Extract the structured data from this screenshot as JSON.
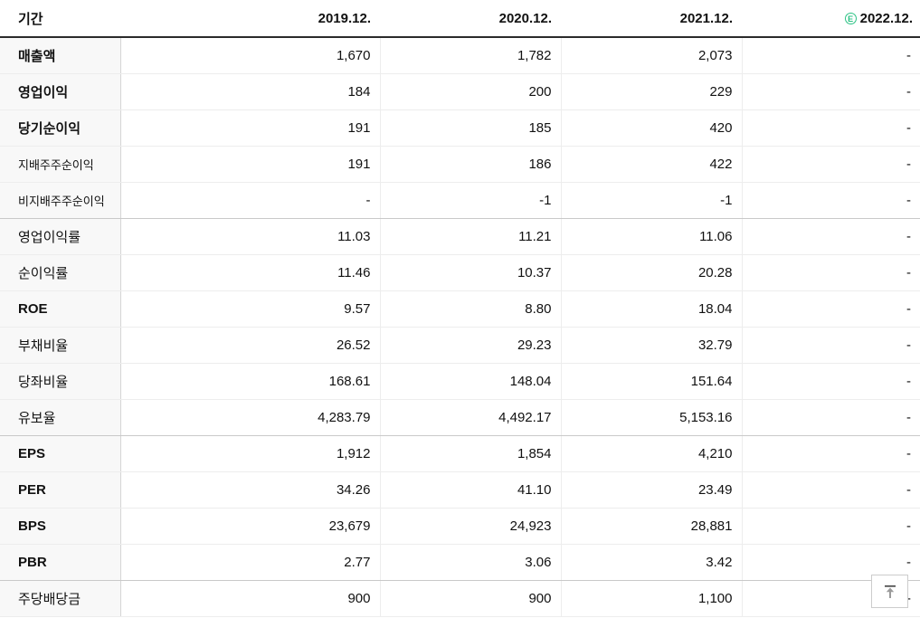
{
  "table": {
    "header": {
      "period_label": "기간",
      "years": [
        "2019.12.",
        "2020.12.",
        "2021.12.",
        "2022.12."
      ],
      "estimate_badge": "E"
    },
    "rows": [
      {
        "label": "매출액",
        "style": "main",
        "values": [
          "1,670",
          "1,782",
          "2,073",
          "-"
        ]
      },
      {
        "label": "영업이익",
        "style": "main",
        "values": [
          "184",
          "200",
          "229",
          "-"
        ]
      },
      {
        "label": "당기순이익",
        "style": "main",
        "values": [
          "191",
          "185",
          "420",
          "-"
        ]
      },
      {
        "label": "지배주주순이익",
        "style": "sub",
        "values": [
          "191",
          "186",
          "422",
          "-"
        ]
      },
      {
        "label": "비지배주주순이익",
        "style": "sub",
        "values": [
          "-",
          "-1",
          "-1",
          "-"
        ],
        "group_end": true
      },
      {
        "label": "영업이익률",
        "style": "normal",
        "values": [
          "11.03",
          "11.21",
          "11.06",
          "-"
        ]
      },
      {
        "label": "순이익률",
        "style": "normal",
        "values": [
          "11.46",
          "10.37",
          "20.28",
          "-"
        ]
      },
      {
        "label": "ROE",
        "style": "main",
        "values": [
          "9.57",
          "8.80",
          "18.04",
          "-"
        ]
      },
      {
        "label": "부채비율",
        "style": "normal",
        "values": [
          "26.52",
          "29.23",
          "32.79",
          "-"
        ]
      },
      {
        "label": "당좌비율",
        "style": "normal",
        "values": [
          "168.61",
          "148.04",
          "151.64",
          "-"
        ]
      },
      {
        "label": "유보율",
        "style": "normal",
        "values": [
          "4,283.79",
          "4,492.17",
          "5,153.16",
          "-"
        ],
        "group_end": true
      },
      {
        "label": "EPS",
        "style": "main",
        "values": [
          "1,912",
          "1,854",
          "4,210",
          "-"
        ]
      },
      {
        "label": "PER",
        "style": "main",
        "values": [
          "34.26",
          "41.10",
          "23.49",
          "-"
        ]
      },
      {
        "label": "BPS",
        "style": "main",
        "values": [
          "23,679",
          "24,923",
          "28,881",
          "-"
        ]
      },
      {
        "label": "PBR",
        "style": "main",
        "values": [
          "2.77",
          "3.06",
          "3.42",
          "-"
        ],
        "group_end": true
      },
      {
        "label": "주당배당금",
        "style": "normal",
        "values": [
          "900",
          "900",
          "1,100",
          "-"
        ]
      }
    ],
    "colors": {
      "negative_value": "#2d7ff9",
      "estimate_green": "#2bc284",
      "header_border": "#2b2b2b",
      "label_column_bg": "#f8f8f8"
    }
  },
  "icons": {
    "scroll_top": "arrow-up-to-top-icon"
  }
}
